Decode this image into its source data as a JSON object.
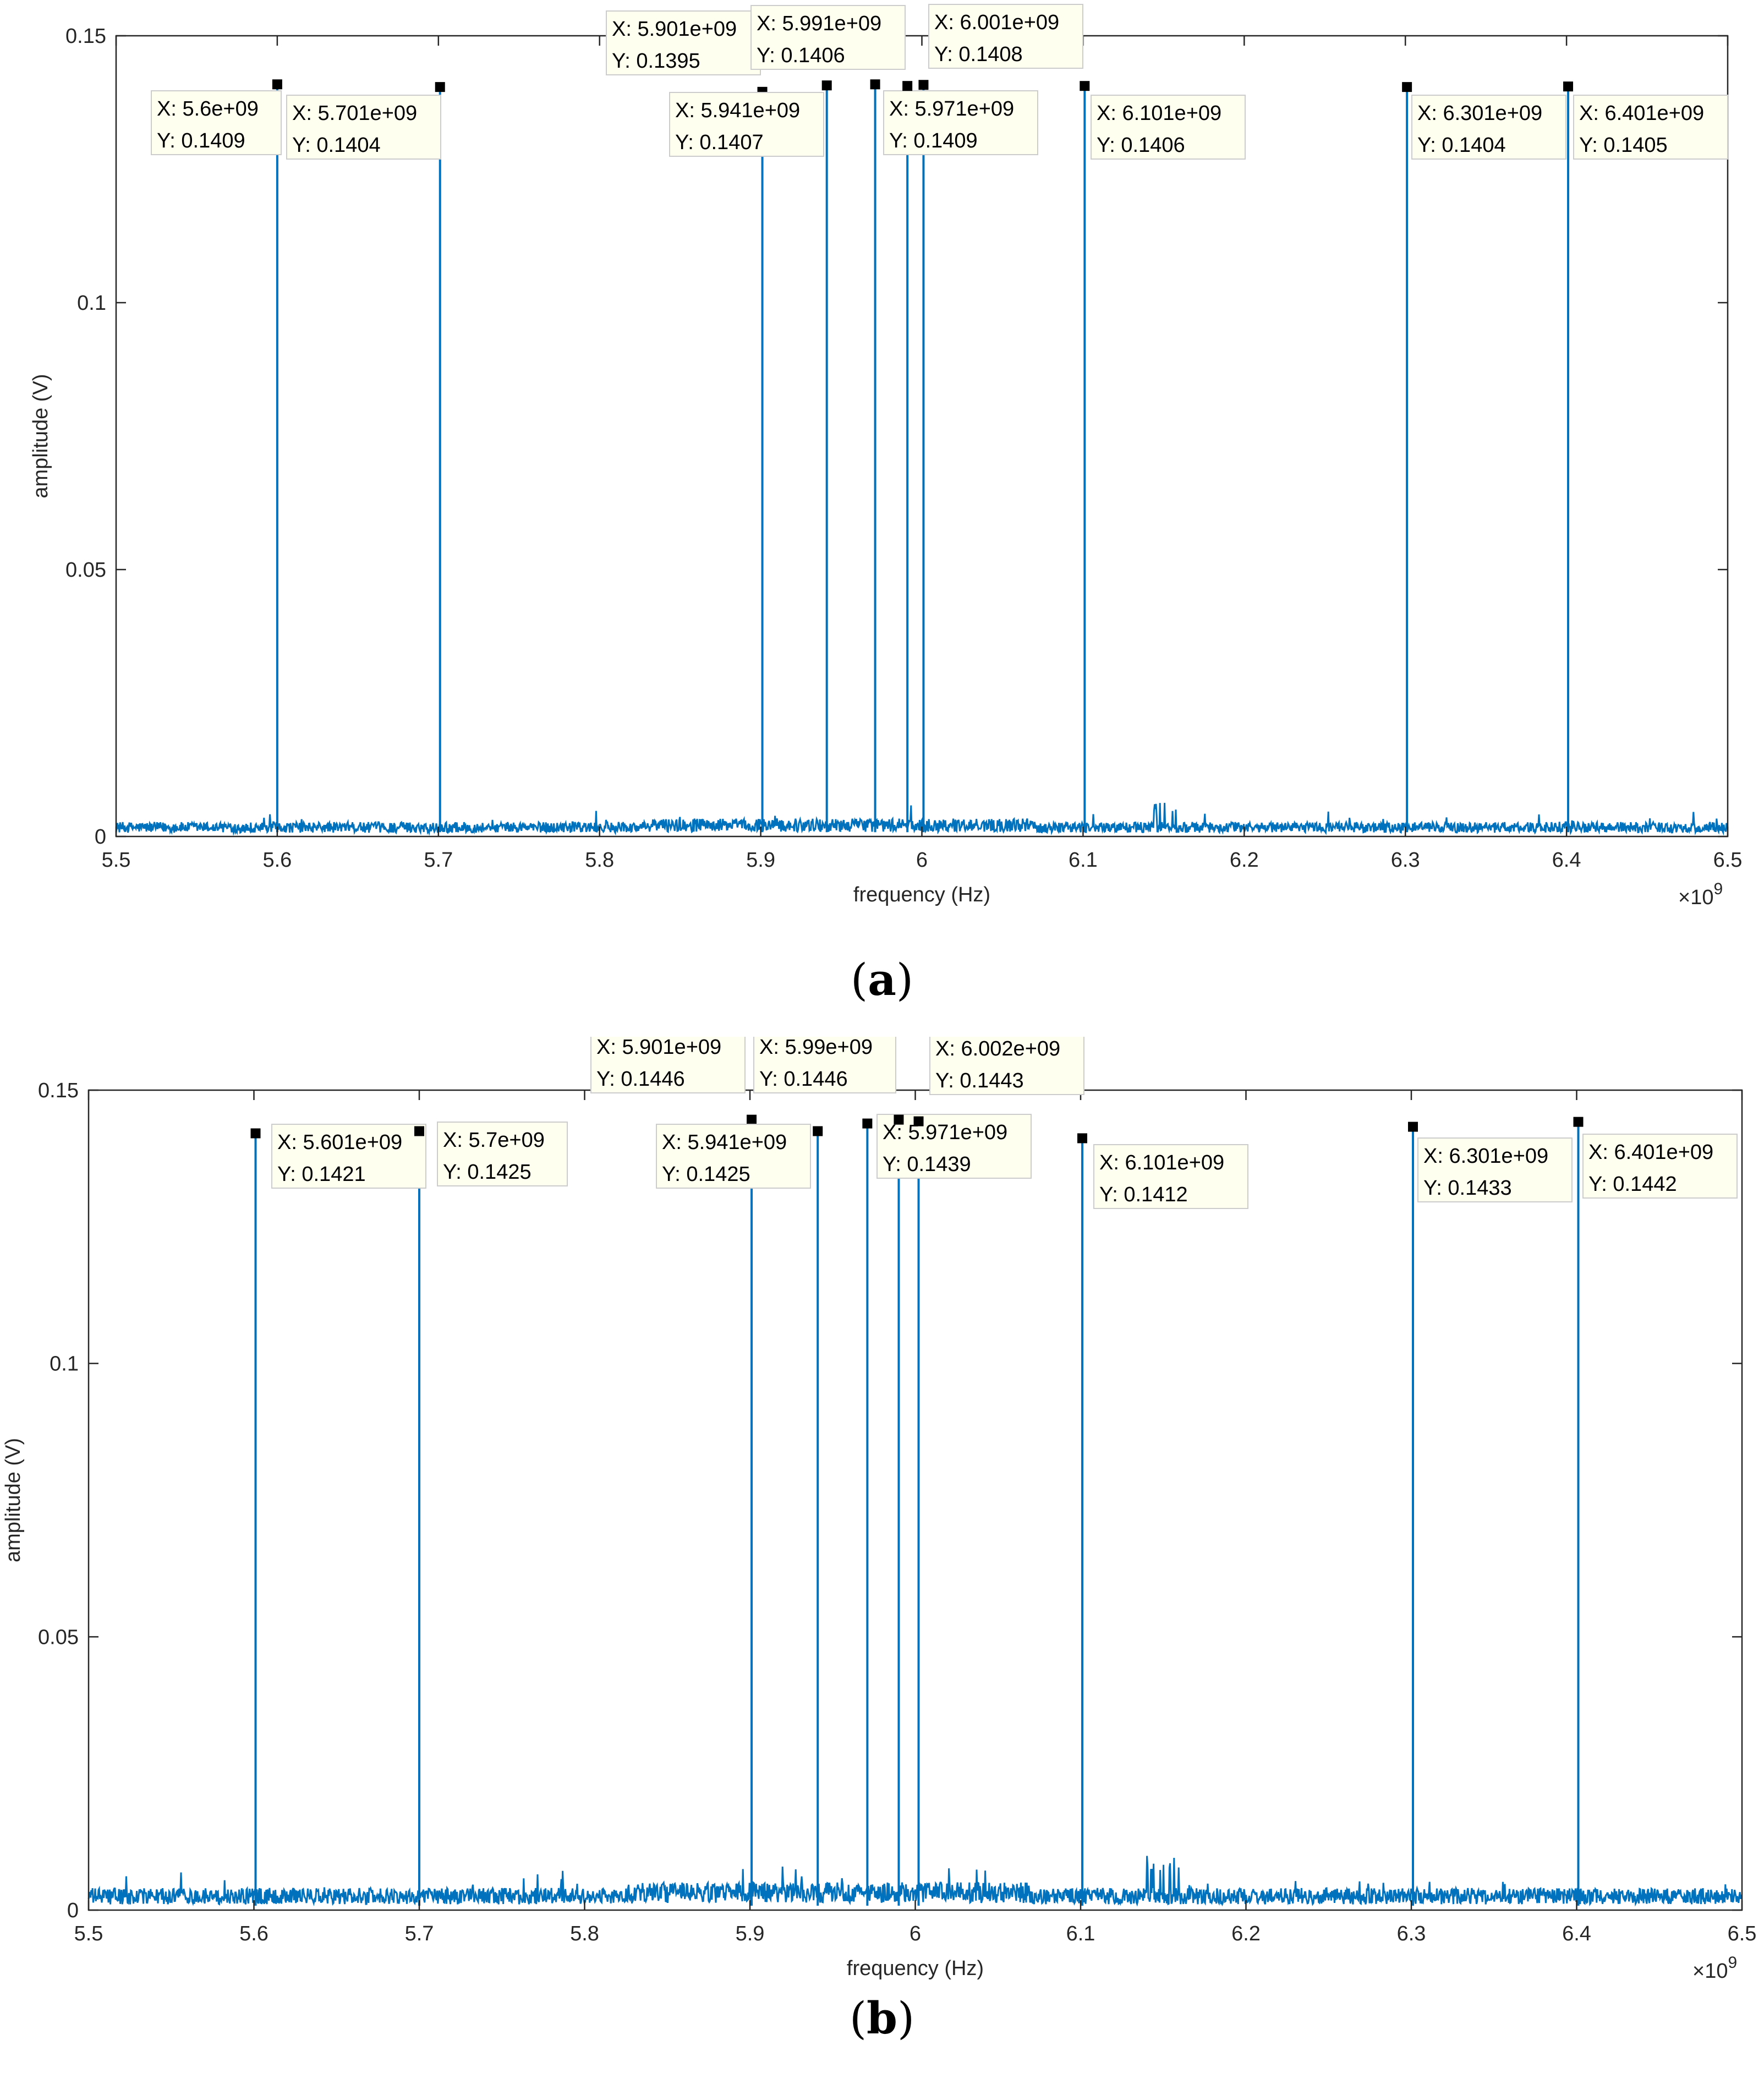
{
  "panels": [
    {
      "id": "a",
      "label": "a",
      "xlabel": "frequency (Hz)",
      "ylabel": "amplitude (V)",
      "x_multiplier": "×10",
      "x_exponent": "9",
      "x_ticks": [
        "5.5",
        "5.6",
        "5.7",
        "5.8",
        "5.9",
        "6",
        "6.1",
        "6.2",
        "6.3",
        "6.4",
        "6.5"
      ],
      "y_ticks": [
        "0",
        "0.05",
        "0.1",
        "0.15"
      ],
      "datatips": [
        {
          "x": "X: 5.6e+09",
          "y": "Y: 0.1409"
        },
        {
          "x": "X: 5.701e+09",
          "y": "Y: 0.1404"
        },
        {
          "x": "X: 5.901e+09",
          "y": "Y: 0.1395"
        },
        {
          "x": "X: 5.941e+09",
          "y": "Y: 0.1407"
        },
        {
          "x": "X: 5.971e+09",
          "y": "Y: 0.1409"
        },
        {
          "x": "X: 5.991e+09",
          "y": "Y: 0.1406"
        },
        {
          "x": "X: 6.001e+09",
          "y": "Y: 0.1408"
        },
        {
          "x": "X: 6.101e+09",
          "y": "Y: 0.1406"
        },
        {
          "x": "X: 6.301e+09",
          "y": "Y: 0.1404"
        },
        {
          "x": "X: 6.401e+09",
          "y": "Y: 0.1405"
        }
      ]
    },
    {
      "id": "b",
      "label": "b",
      "xlabel": "frequency (Hz)",
      "ylabel": "amplitude (V)",
      "x_multiplier": "×10",
      "x_exponent": "9",
      "x_ticks": [
        "5.5",
        "5.6",
        "5.7",
        "5.8",
        "5.9",
        "6",
        "6.1",
        "6.2",
        "6.3",
        "6.4",
        "6.5"
      ],
      "y_ticks": [
        "0",
        "0.05",
        "0.1",
        "0.15"
      ],
      "datatips": [
        {
          "x": "X: 5.601e+09",
          "y": "Y: 0.1421"
        },
        {
          "x": "X: 5.7e+09",
          "y": "Y: 0.1425"
        },
        {
          "x": "X: 5.901e+09",
          "y": "Y: 0.1446"
        },
        {
          "x": "X: 5.941e+09",
          "y": "Y: 0.1425"
        },
        {
          "x": "X: 5.971e+09",
          "y": "Y: 0.1439"
        },
        {
          "x": "X: 5.99e+09",
          "y": "Y: 0.1446"
        },
        {
          "x": "X: 6.002e+09",
          "y": "Y: 0.1443"
        },
        {
          "x": "X: 6.101e+09",
          "y": "Y: 0.1412"
        },
        {
          "x": "X: 6.301e+09",
          "y": "Y: 0.1433"
        },
        {
          "x": "X: 6.401e+09",
          "y": "Y: 0.1442"
        }
      ]
    }
  ],
  "chart_data": [
    {
      "type": "line",
      "xlabel": "frequency (Hz)",
      "ylabel": "amplitude (V)",
      "xlim": [
        5500000000.0,
        6500000000.0
      ],
      "ylim": [
        0,
        0.15
      ],
      "grid": false,
      "noise_floor": 0.002,
      "line_color": "#0072BD",
      "series": [
        {
          "x": [
            5600000000.0,
            5701000000.0,
            5901000000.0,
            5941000000.0,
            5971000000.0,
            5991000000.0,
            6001000000.0,
            6101000000.0,
            6301000000.0,
            6401000000.0
          ],
          "y": [
            0.1409,
            0.1404,
            0.1395,
            0.1407,
            0.1409,
            0.1406,
            0.1408,
            0.1406,
            0.1404,
            0.1405
          ]
        }
      ]
    },
    {
      "type": "line",
      "xlabel": "frequency (Hz)",
      "ylabel": "amplitude (V)",
      "xlim": [
        5500000000.0,
        6500000000.0
      ],
      "ylim": [
        0,
        0.15
      ],
      "grid": false,
      "noise_floor": 0.003,
      "line_color": "#0072BD",
      "series": [
        {
          "x": [
            5601000000.0,
            5700000000.0,
            5901000000.0,
            5941000000.0,
            5971000000.0,
            5990000000.0,
            6002000000.0,
            6101000000.0,
            6301000000.0,
            6401000000.0
          ],
          "y": [
            0.1421,
            0.1425,
            0.1446,
            0.1425,
            0.1439,
            0.1446,
            0.1443,
            0.1412,
            0.1433,
            0.1442
          ]
        }
      ]
    }
  ]
}
